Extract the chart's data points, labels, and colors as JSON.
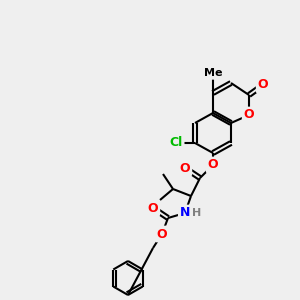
{
  "bg_color": "#efefef",
  "atom_colors": {
    "O": "#ff0000",
    "N": "#0000ff",
    "Cl": "#00bb00",
    "C": "#000000",
    "H": "#808080"
  },
  "bond_color": "#000000",
  "bond_width": 1.5,
  "font_size": 9
}
